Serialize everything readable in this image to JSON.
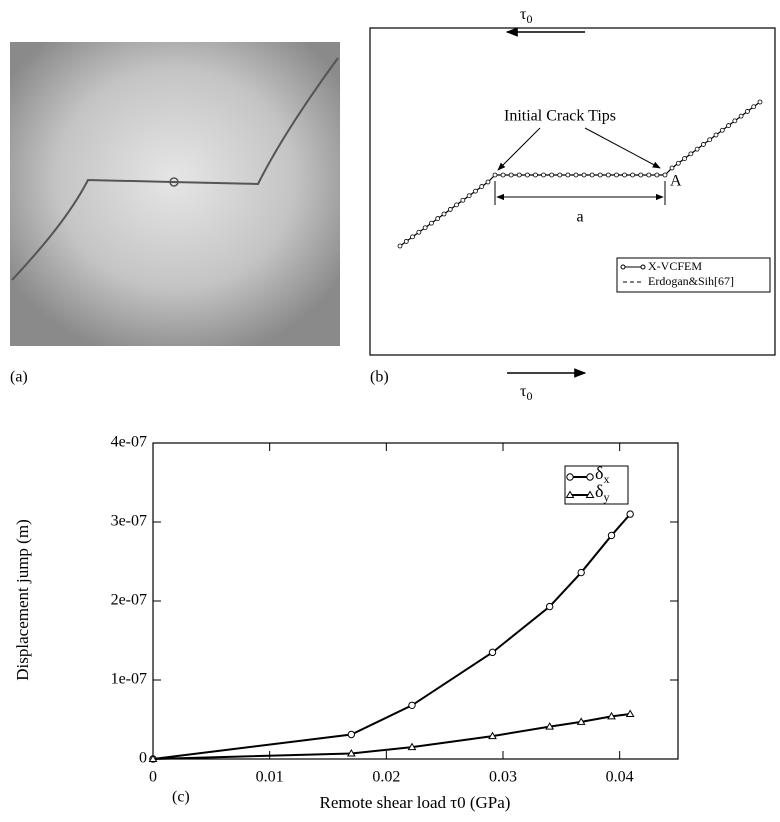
{
  "panels": {
    "a": {
      "label": "(a)"
    },
    "b": {
      "label": "(b)",
      "load_top": "τ0",
      "load_bottom": "τ0",
      "annotation": "Initial Crack Tips",
      "point": "A",
      "dimension": "a",
      "legend": [
        "X-VCFEM",
        "Erdogan&Sih[67]"
      ]
    }
  },
  "chart_data": {
    "type": "line",
    "panel_label": "(c)",
    "x_label": "Remote shear load τ0 (GPa)",
    "y_label": "Displacement jump (m)",
    "x": [
      0,
      0.017,
      0.0222,
      0.0291,
      0.034,
      0.0367,
      0.0393,
      0.0409
    ],
    "series": [
      {
        "name": "δx",
        "color": "#000000",
        "marker": "circle",
        "values": [
          0,
          3.1e-08,
          6.8e-08,
          1.35e-07,
          1.93e-07,
          2.36e-07,
          2.83e-07,
          3.1e-07
        ]
      },
      {
        "name": "δy",
        "color": "#000000",
        "marker": "triangle",
        "values": [
          0,
          7e-09,
          1.5e-08,
          2.9e-08,
          4.1e-08,
          4.7e-08,
          5.4e-08,
          5.7e-08
        ]
      }
    ],
    "xlim": [
      0,
      0.045
    ],
    "xticks": [
      0,
      0.01,
      0.02,
      0.03,
      0.04
    ],
    "ylim": [
      0,
      4e-07
    ],
    "yticks": [
      0,
      {
        "value": 1e-07,
        "label": "1e-07"
      },
      {
        "value": 2e-07,
        "label": "2e-07"
      },
      {
        "value": 3e-07,
        "label": "3e-07"
      },
      {
        "value": 4e-07,
        "label": "4e-07"
      }
    ],
    "grid": false,
    "legend": "upper right"
  }
}
